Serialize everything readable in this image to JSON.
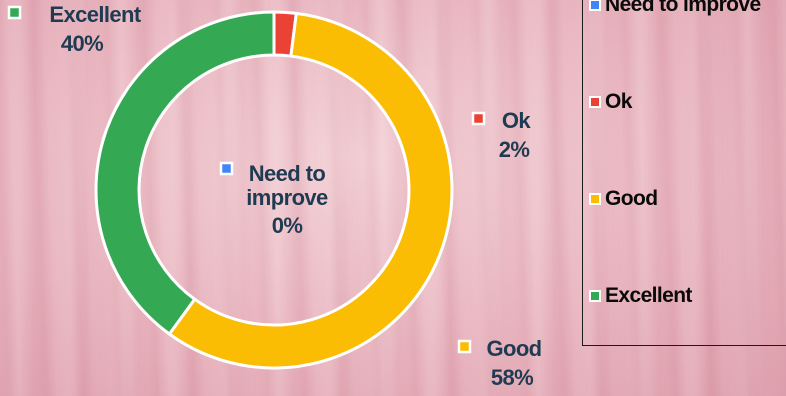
{
  "chart_data": {
    "type": "pie",
    "variant": "donut",
    "categories": [
      "Need to improve",
      "Ok",
      "Good",
      "Excellent"
    ],
    "values": [
      0,
      2,
      58,
      40
    ],
    "value_labels": [
      "0%",
      "2%",
      "58%",
      "40%"
    ],
    "colors": [
      "#4285f4",
      "#ea4335",
      "#fbbc04",
      "#34a853"
    ],
    "legend_position": "right",
    "title": ""
  }
}
